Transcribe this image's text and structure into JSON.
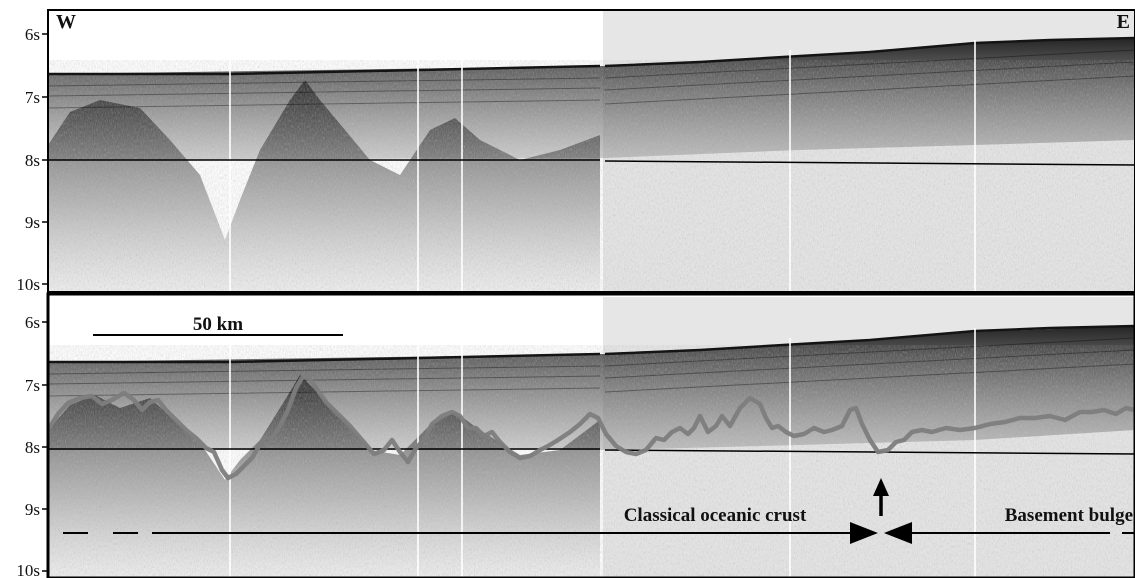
{
  "top_panel": {
    "y_ticks": [
      "6s",
      "7s",
      "8s",
      "9s",
      "10s"
    ],
    "left_label": "W",
    "right_label": "E"
  },
  "bottom_panel": {
    "y_ticks": [
      "6s",
      "7s",
      "8s",
      "9s",
      "10s"
    ],
    "scale_bar_label": "50 km",
    "label_oceanic_crust": "Classical oceanic crust",
    "label_basement_bulge": "Basement bulge"
  },
  "colors": {
    "seafloor_ink": "#141414",
    "basement_trace": "#7d7d7d",
    "shaded_region": "#e6e6e6",
    "frame": "#000000"
  }
}
